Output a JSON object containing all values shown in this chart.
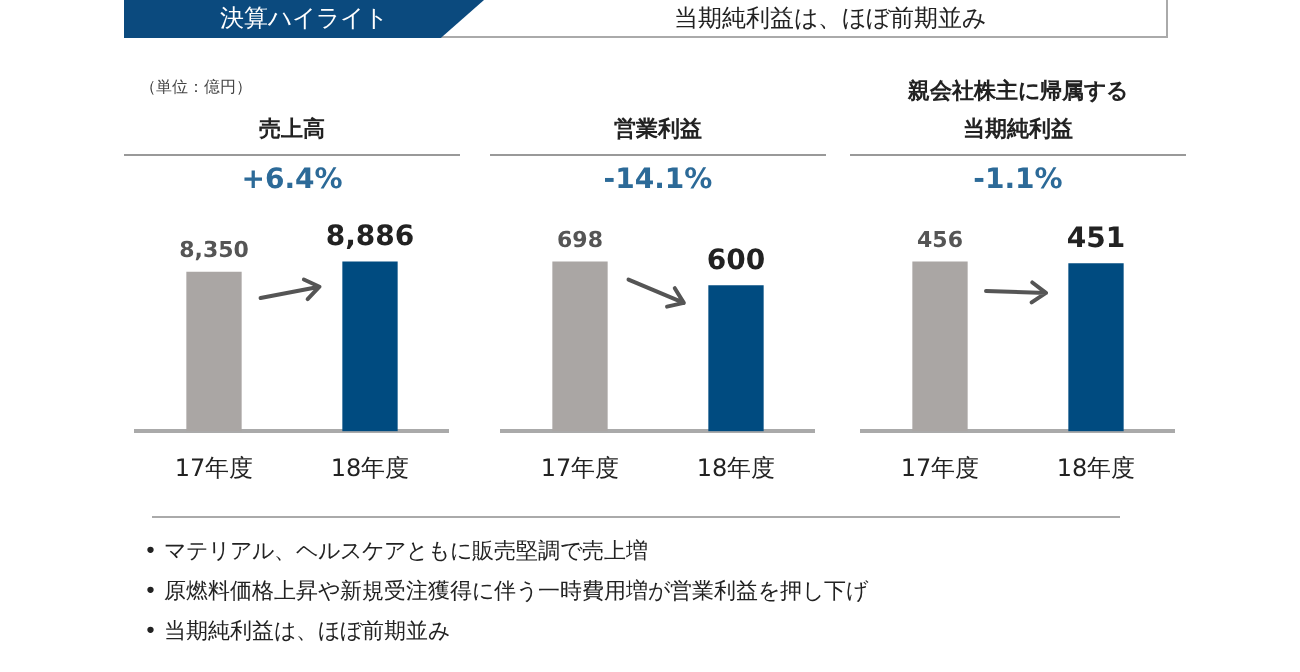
{
  "chart_data": [
    {
      "type": "bar",
      "title": "売上高",
      "subtitle": "+6.4%",
      "categories": [
        "17年度",
        "18年度"
      ],
      "values": [
        8350,
        8886
      ],
      "value_labels": [
        "8,350",
        "8,886"
      ],
      "colors": [
        "#aaa6a4",
        "#004b80"
      ],
      "annotations": [
        "決算ハイライト",
        "当期純利益は、ほぼ前期並み",
        "（単位：億円）"
      ]
    },
    {
      "type": "bar",
      "title": "営業利益",
      "subtitle": "-14.1%",
      "categories": [
        "17年度",
        "18年度"
      ],
      "values": [
        698,
        600
      ],
      "colors": [
        "#aaa6a4",
        "#004b80"
      ],
      "data_labels": true
    },
    {
      "type": "bar",
      "title": "親会社株主に帰属する当期純利益",
      "subtitle": "-1.1%",
      "categories": [
        "17年度",
        "18年度"
      ],
      "values": [
        456,
        451
      ],
      "colors": [
        "#aaa6a4",
        "#004b80"
      ],
      "data_labels": true,
      "annotations": [
        "• マテリアル、ヘルスケアともに販売堅調で売上増",
        "• 原燃料価格上昇や新規受注獲得に伴う一時費用増が営業利益を押し下げ",
        "• 当期純利益は、ほぼ前期並み"
      ]
    }
  ]
}
